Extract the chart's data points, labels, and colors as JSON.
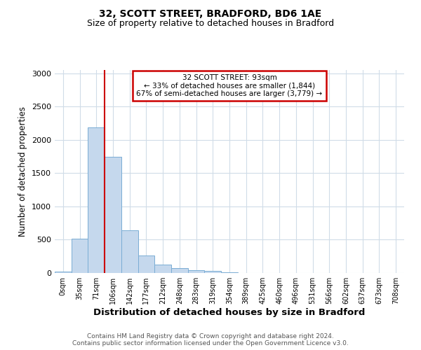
{
  "title1": "32, SCOTT STREET, BRADFORD, BD6 1AE",
  "title2": "Size of property relative to detached houses in Bradford",
  "xlabel": "Distribution of detached houses by size in Bradford",
  "ylabel": "Number of detached properties",
  "footnote": "Contains HM Land Registry data © Crown copyright and database right 2024.\nContains public sector information licensed under the Open Government Licence v3.0.",
  "annotation_line1": "32 SCOTT STREET: 93sqm",
  "annotation_line2": "← 33% of detached houses are smaller (1,844)",
  "annotation_line3": "67% of semi-detached houses are larger (3,779) →",
  "bar_labels": [
    "0sqm",
    "35sqm",
    "71sqm",
    "106sqm",
    "142sqm",
    "177sqm",
    "212sqm",
    "248sqm",
    "283sqm",
    "319sqm",
    "354sqm",
    "389sqm",
    "425sqm",
    "460sqm",
    "496sqm",
    "531sqm",
    "566sqm",
    "602sqm",
    "637sqm",
    "673sqm",
    "708sqm"
  ],
  "bar_values": [
    20,
    520,
    2190,
    1750,
    640,
    265,
    130,
    75,
    45,
    30,
    15,
    5,
    3,
    2,
    1,
    0,
    0,
    0,
    0,
    0,
    0
  ],
  "bar_color": "#c5d8ed",
  "bar_edge_color": "#7aadd4",
  "vline_color": "#cc0000",
  "vline_x": 3,
  "ylim": [
    0,
    3050
  ],
  "yticks": [
    0,
    500,
    1000,
    1500,
    2000,
    2500,
    3000
  ],
  "bg_color": "#ffffff",
  "plot_bg_color": "#ffffff",
  "grid_color": "#d0dce8",
  "annotation_box_color": "#cc0000",
  "title1_fontsize": 10,
  "title2_fontsize": 9,
  "xlabel_fontsize": 9.5,
  "ylabel_fontsize": 8.5,
  "tick_fontsize": 7,
  "footnote_fontsize": 6.5
}
